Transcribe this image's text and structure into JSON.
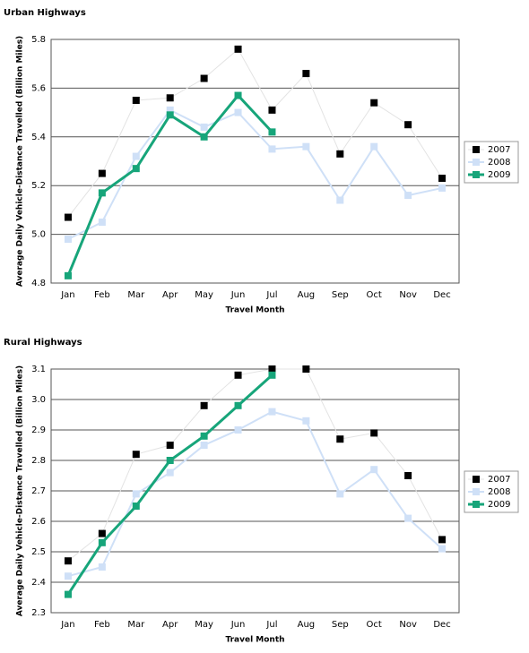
{
  "chart_data": [
    {
      "type": "line",
      "title": "Urban Highways",
      "x_label": "Travel Month",
      "y_label": "Average Daily Vehicle-Distance Travelled (Billion Miles)",
      "categories": [
        "Jan",
        "Feb",
        "Mar",
        "Apr",
        "May",
        "Jun",
        "Jul",
        "Aug",
        "Sep",
        "Oct",
        "Nov",
        "Dec"
      ],
      "series": [
        {
          "name": "2007",
          "color": "#000000",
          "line_color": "#e3e3e3",
          "line_width": 1,
          "values": [
            5.07,
            5.25,
            5.55,
            5.56,
            5.64,
            5.76,
            5.51,
            5.66,
            5.33,
            5.54,
            5.45,
            5.23
          ]
        },
        {
          "name": "2008",
          "color": "#cfe0f7",
          "line_color": "#cfe0f7",
          "line_width": 2,
          "values": [
            4.98,
            5.05,
            5.32,
            5.51,
            5.44,
            5.5,
            5.35,
            5.36,
            5.14,
            5.36,
            5.16,
            5.19
          ]
        },
        {
          "name": "2009",
          "color": "#17a57a",
          "line_color": "#17a57a",
          "line_width": 3,
          "values": [
            4.83,
            5.17,
            5.27,
            5.49,
            5.4,
            5.57,
            5.42,
            null,
            null,
            null,
            null,
            null
          ]
        }
      ],
      "ylim": [
        4.8,
        5.8
      ],
      "yticks": [
        4.8,
        {
          "value": 5,
          "label": "5.0"
        },
        5.2,
        5.4,
        5.6,
        5.8
      ],
      "grid": true,
      "legend": "right"
    },
    {
      "type": "line",
      "title": "Rural Highways",
      "x_label": "Travel Month",
      "y_label": "Average Daily Vehicle-Distance Travelled (Billion Miles)",
      "categories": [
        "Jan",
        "Feb",
        "Mar",
        "Apr",
        "May",
        "Jun",
        "Jul",
        "Aug",
        "Sep",
        "Oct",
        "Nov",
        "Dec"
      ],
      "series": [
        {
          "name": "2007",
          "color": "#000000",
          "line_color": "#e3e3e3",
          "line_width": 1,
          "values": [
            2.47,
            2.56,
            2.82,
            2.85,
            2.98,
            3.08,
            3.1,
            3.1,
            2.87,
            2.89,
            2.75,
            2.54
          ]
        },
        {
          "name": "2008",
          "color": "#cfe0f7",
          "line_color": "#cfe0f7",
          "line_width": 2,
          "values": [
            2.42,
            2.45,
            2.69,
            2.76,
            2.85,
            2.9,
            2.96,
            2.93,
            2.69,
            2.77,
            2.61,
            2.51
          ]
        },
        {
          "name": "2009",
          "color": "#17a57a",
          "line_color": "#17a57a",
          "line_width": 3,
          "values": [
            2.36,
            2.53,
            2.65,
            2.8,
            2.88,
            2.98,
            3.08,
            null,
            null,
            null,
            null,
            null
          ]
        }
      ],
      "ylim": [
        2.3,
        3.1
      ],
      "yticks": [
        2.3,
        2.4,
        2.5,
        2.6,
        2.7,
        2.8,
        2.9,
        {
          "value": 3,
          "label": "3.0"
        },
        3.1
      ],
      "grid": true,
      "legend": "right"
    }
  ]
}
